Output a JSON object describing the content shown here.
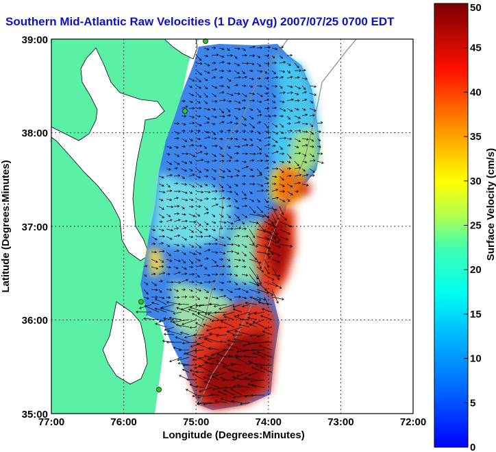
{
  "title": "Southern Mid-Atlantic Raw Velocities (1 Day Avg) 2007/07/25 0700 EDT",
  "x_axis": {
    "label": "Longitude (Degrees:Minutes)",
    "ticks": [
      "77:00",
      "76:00",
      "75:00",
      "74:00",
      "73:00",
      "72:00"
    ]
  },
  "y_axis": {
    "label": "Latitude (Degrees:Minutes)",
    "ticks": [
      "39:00",
      "38:00",
      "37:00",
      "36:00",
      "35:00"
    ]
  },
  "colorbar": {
    "label": "Surface Velocity (cm/s)",
    "ticks": [
      "50",
      "45",
      "40",
      "35",
      "30",
      "25",
      "20",
      "15",
      "10",
      "5",
      "0"
    ],
    "range": [
      0,
      50
    ]
  },
  "chart_data": {
    "type": "heatmap",
    "map_extent": {
      "lon_west": -77,
      "lon_east": -72,
      "lat_south": 35,
      "lat_north": 39
    },
    "grid": "dotted",
    "colormap": "jet",
    "value_range_cm_s": [
      0,
      50
    ],
    "colors": {
      "land": "#5af0a6",
      "ocean_background": "#ffffff",
      "grid": "#000000",
      "bathymetry": "#888888",
      "coast": "#000000",
      "station": "#22cc22"
    }
  }
}
